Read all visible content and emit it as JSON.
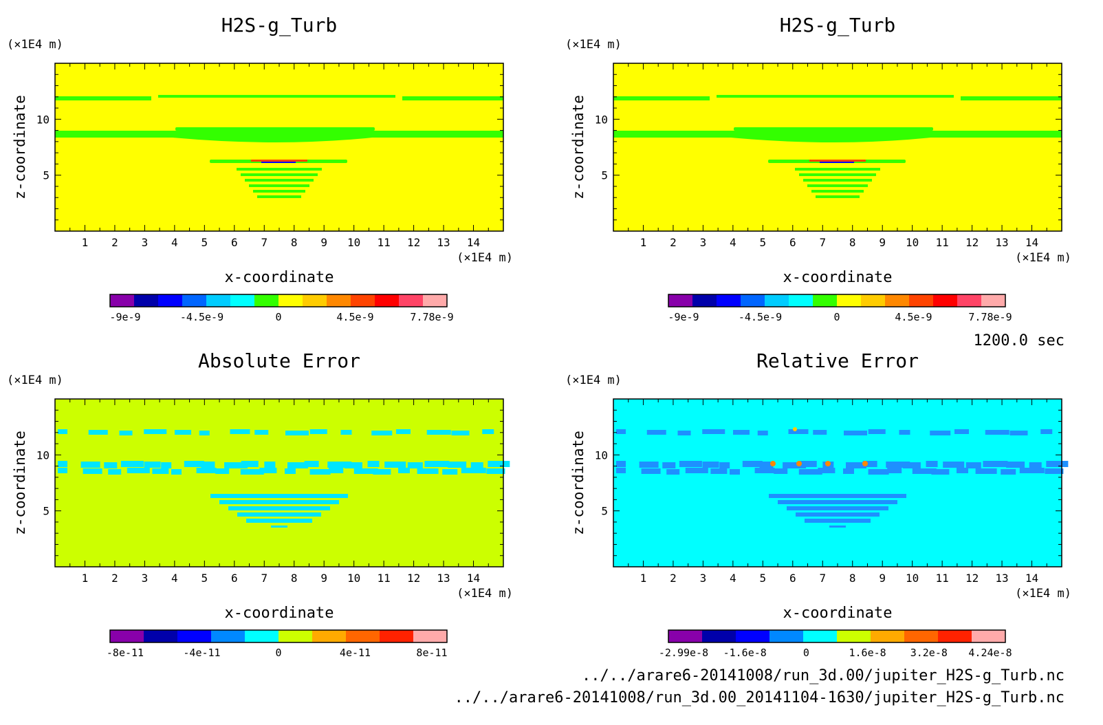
{
  "time_label": "1200.0 sec",
  "files": [
    "../../arare6-20141008/run_3d.00/jupiter_H2S-g_Turb.nc",
    "../../arare6-20141008/run_3d.00_20141104-1630/jupiter_H2S-g_Turb.nc"
  ],
  "chart_data": [
    {
      "type": "heatmap",
      "title": "H2S-g_Turb",
      "xlabel": "x-coordinate",
      "ylabel": "z-coordinate",
      "x_unit": "(×1E4 m)",
      "y_unit": "(×1E4 m)",
      "xlim": [
        0,
        15
      ],
      "ylim": [
        0,
        15
      ],
      "x_ticks": [
        "1",
        "2",
        "3",
        "4",
        "5",
        "6",
        "7",
        "8",
        "9",
        "10",
        "11",
        "12",
        "13",
        "14"
      ],
      "y_ticks": [
        "5",
        "10"
      ],
      "background_color": "#ffff00",
      "feature_color": "#33ff00",
      "colorbar": {
        "colors": [
          "#8800aa",
          "#0000aa",
          "#0000ff",
          "#0066ff",
          "#00ccff",
          "#00ffff",
          "#33ff00",
          "#ffff00",
          "#ffcc00",
          "#ff8800",
          "#ff4400",
          "#ff0000",
          "#ff4466",
          "#ffaaaa"
        ],
        "tick_labels": [
          "-9e-9",
          "-4.5e-9",
          "0",
          "4.5e-9",
          "7.78e-9"
        ]
      }
    },
    {
      "type": "heatmap",
      "title": "H2S-g_Turb",
      "xlabel": "x-coordinate",
      "ylabel": "z-coordinate",
      "x_unit": "(×1E4 m)",
      "y_unit": "(×1E4 m)",
      "xlim": [
        0,
        15
      ],
      "ylim": [
        0,
        15
      ],
      "x_ticks": [
        "1",
        "2",
        "3",
        "4",
        "5",
        "6",
        "7",
        "8",
        "9",
        "10",
        "11",
        "12",
        "13",
        "14"
      ],
      "y_ticks": [
        "5",
        "10"
      ],
      "background_color": "#ffff00",
      "feature_color": "#33ff00",
      "colorbar": {
        "colors": [
          "#8800aa",
          "#0000aa",
          "#0000ff",
          "#0066ff",
          "#00ccff",
          "#00ffff",
          "#33ff00",
          "#ffff00",
          "#ffcc00",
          "#ff8800",
          "#ff4400",
          "#ff0000",
          "#ff4466",
          "#ffaaaa"
        ],
        "tick_labels": [
          "-9e-9",
          "-4.5e-9",
          "0",
          "4.5e-9",
          "7.78e-9"
        ]
      }
    },
    {
      "type": "heatmap",
      "title": "Absolute Error",
      "xlabel": "x-coordinate",
      "ylabel": "z-coordinate",
      "x_unit": "(×1E4 m)",
      "y_unit": "(×1E4 m)",
      "xlim": [
        0,
        15
      ],
      "ylim": [
        0,
        15
      ],
      "x_ticks": [
        "1",
        "2",
        "3",
        "4",
        "5",
        "6",
        "7",
        "8",
        "9",
        "10",
        "11",
        "12",
        "13",
        "14"
      ],
      "y_ticks": [
        "5",
        "10"
      ],
      "background_color": "#ccff00",
      "feature_color": "#00e5ff",
      "colorbar": {
        "colors": [
          "#8800aa",
          "#0000aa",
          "#0000ff",
          "#0088ff",
          "#00ffff",
          "#ccff00",
          "#ffaa00",
          "#ff6600",
          "#ff2200",
          "#ffaaaa"
        ],
        "tick_labels": [
          "-8e-11",
          "-4e-11",
          "0",
          "4e-11",
          "8e-11"
        ]
      }
    },
    {
      "type": "heatmap",
      "title": "Relative Error",
      "xlabel": "x-coordinate",
      "ylabel": "z-coordinate",
      "x_unit": "(×1E4 m)",
      "y_unit": "(×1E4 m)",
      "xlim": [
        0,
        15
      ],
      "ylim": [
        0,
        15
      ],
      "x_ticks": [
        "1",
        "2",
        "3",
        "4",
        "5",
        "6",
        "7",
        "8",
        "9",
        "10",
        "11",
        "12",
        "13",
        "14"
      ],
      "y_ticks": [
        "5",
        "10"
      ],
      "background_color": "#00ffff",
      "feature_color": "#1e90ff",
      "colorbar": {
        "colors": [
          "#8800aa",
          "#0000aa",
          "#0000ff",
          "#0088ff",
          "#00ffff",
          "#ccff00",
          "#ffaa00",
          "#ff6600",
          "#ff2200",
          "#ffaaaa"
        ],
        "tick_labels": [
          "-2.99e-8",
          "-1.6e-8",
          "0",
          "1.6e-8",
          "3.2e-8",
          "4.24e-8"
        ]
      }
    }
  ]
}
